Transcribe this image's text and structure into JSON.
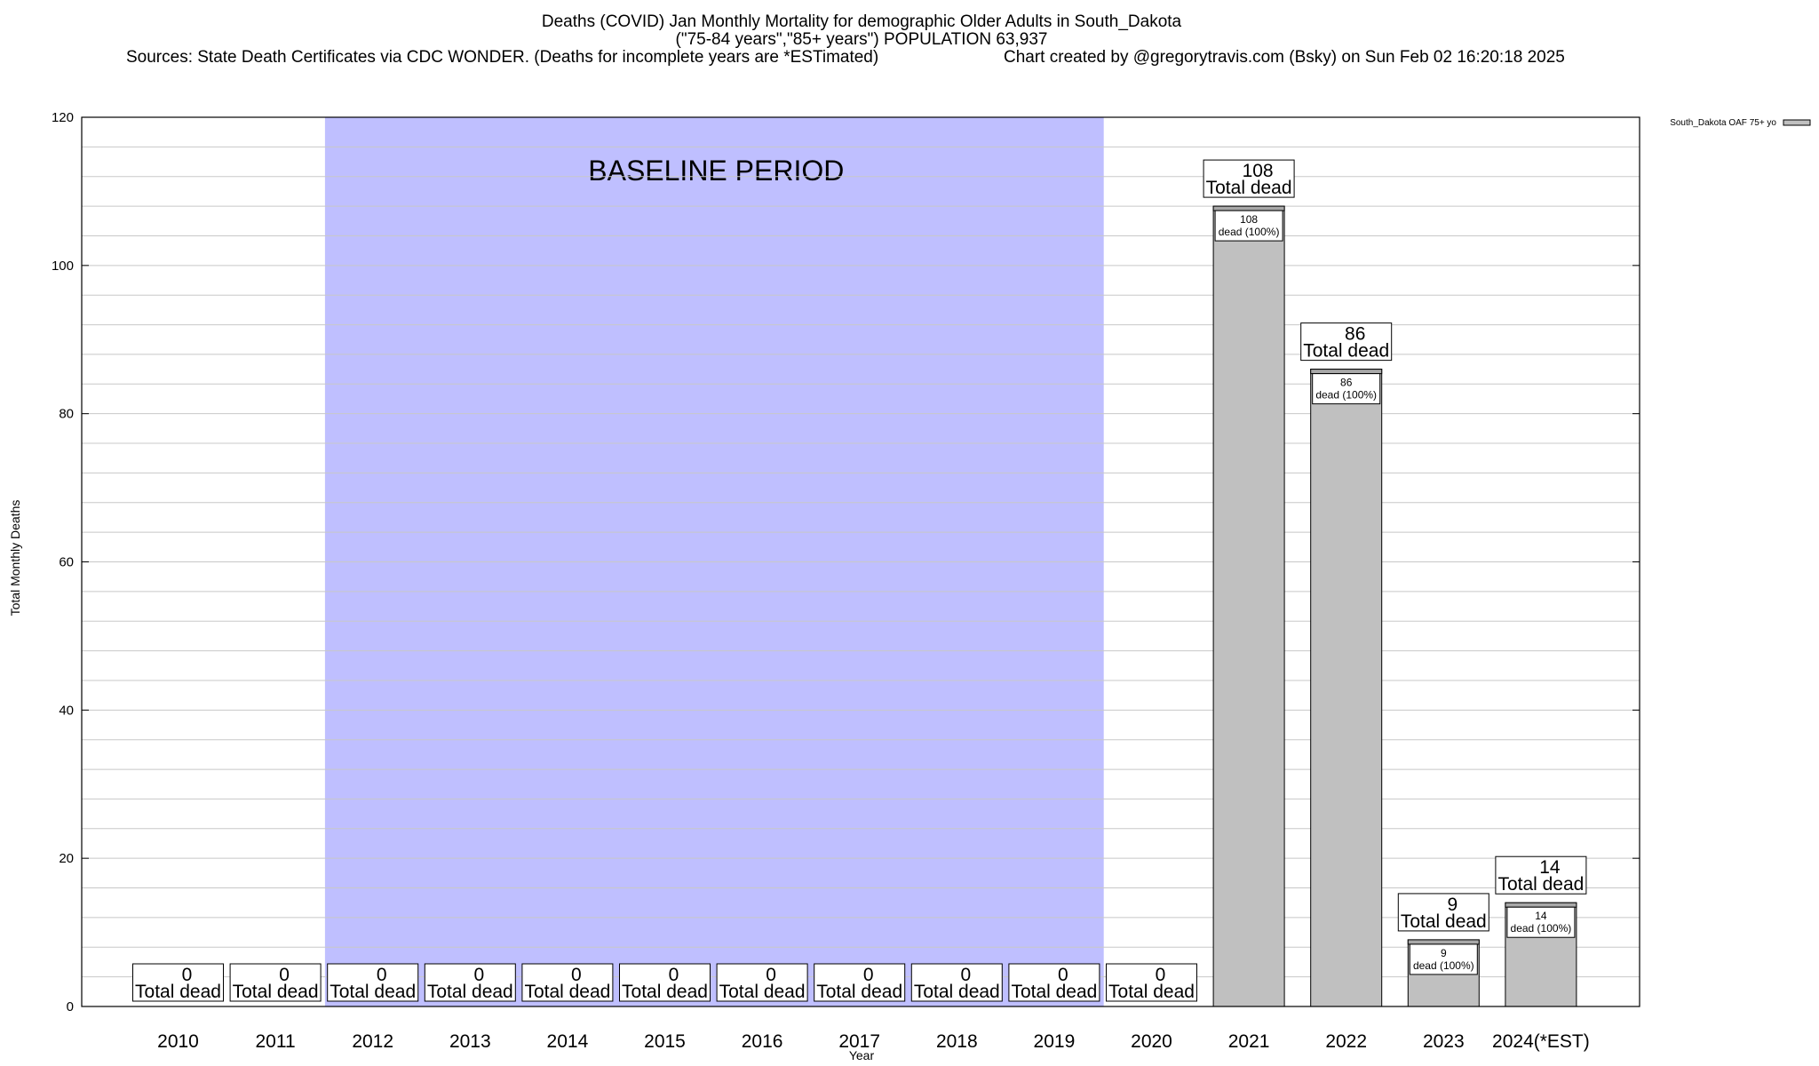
{
  "header": {
    "title_line1": "Deaths (COVID) Jan Monthly Mortality for demographic Older Adults in South_Dakota",
    "title_line2": "(\"75-84 years\",\"85+ years\") POPULATION 63,937",
    "sources": "Sources: State Death Certificates via CDC WONDER. (Deaths for incomplete years are *ESTimated)",
    "credit": "Chart created by @gregorytravis.com (Bsky) on Sun Feb 02 16:20:18 2025"
  },
  "chart_data": {
    "type": "bar",
    "categories": [
      "2010",
      "2011",
      "2012",
      "2013",
      "2014",
      "2015",
      "2016",
      "2017",
      "2018",
      "2019",
      "2020",
      "2021",
      "2022",
      "2023",
      "2024(*EST)"
    ],
    "series": [
      {
        "name": "South_Dakota OAF 75+ yo",
        "values": [
          0,
          0,
          0,
          0,
          0,
          0,
          0,
          0,
          0,
          0,
          0,
          108,
          86,
          9,
          14
        ]
      }
    ],
    "xlabel": "Year",
    "ylabel": "Total Monthly Deaths",
    "ylim": [
      0,
      120
    ],
    "yticks": [
      0,
      20,
      40,
      60,
      80,
      100,
      120
    ],
    "grid": true,
    "legend_position": "top-right",
    "total_label": "Total dead",
    "inner_label_suffix": "dead (100%)",
    "baseline": {
      "label": "BASELINE PERIOD",
      "from": "2012",
      "to": "2019",
      "color": "#bfbfff"
    },
    "colors": {
      "bar": "#c0c0c0",
      "bar_top": "#a8a8a8"
    }
  }
}
